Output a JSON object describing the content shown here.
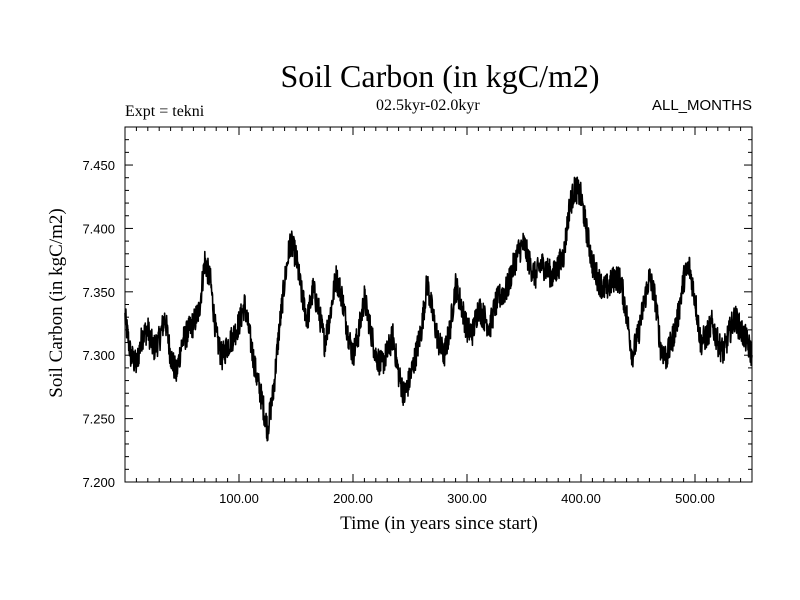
{
  "chart_data": {
    "type": "line",
    "title": "Soil Carbon (in kgC/m2)",
    "subtitle_left": "Expt = tekni",
    "subtitle_center": "02.5kyr-02.0kyr",
    "subtitle_right": "ALL_MONTHS",
    "xlabel": "Time (in years since start)",
    "ylabel": "Soil Carbon (in kgC/m2)",
    "xlim": [
      0,
      550
    ],
    "ylim": [
      7.2,
      7.48
    ],
    "x_ticks": [
      {
        "value": 100,
        "label": "100.00"
      },
      {
        "value": 200,
        "label": "200.00"
      },
      {
        "value": 300,
        "label": "300.00"
      },
      {
        "value": 400,
        "label": "400.00"
      },
      {
        "value": 500,
        "label": "500.00"
      }
    ],
    "y_ticks": [
      {
        "value": 7.2,
        "label": "7.200"
      },
      {
        "value": 7.25,
        "label": "7.250"
      },
      {
        "value": 7.3,
        "label": "7.300"
      },
      {
        "value": 7.35,
        "label": "7.350"
      },
      {
        "value": 7.4,
        "label": "7.400"
      },
      {
        "value": 7.45,
        "label": "7.450"
      }
    ],
    "series": [
      {
        "name": "Soil Carbon",
        "color": "#000000",
        "x": [
          0,
          5,
          10,
          15,
          20,
          25,
          30,
          35,
          40,
          45,
          50,
          55,
          60,
          65,
          70,
          75,
          80,
          85,
          90,
          95,
          100,
          105,
          110,
          115,
          120,
          125,
          130,
          135,
          140,
          145,
          150,
          155,
          160,
          165,
          170,
          175,
          180,
          185,
          190,
          195,
          200,
          205,
          210,
          215,
          220,
          225,
          230,
          235,
          240,
          245,
          250,
          255,
          260,
          265,
          270,
          275,
          280,
          285,
          290,
          295,
          300,
          305,
          310,
          315,
          320,
          325,
          330,
          335,
          340,
          345,
          350,
          355,
          360,
          365,
          370,
          375,
          380,
          385,
          390,
          395,
          400,
          405,
          410,
          415,
          420,
          425,
          430,
          435,
          440,
          445,
          450,
          455,
          460,
          465,
          470,
          475,
          480,
          485,
          490,
          495,
          500,
          505,
          510,
          515,
          520,
          525,
          530,
          535,
          540,
          545,
          550
        ],
        "y": [
          7.33,
          7.3,
          7.292,
          7.315,
          7.32,
          7.305,
          7.312,
          7.33,
          7.3,
          7.285,
          7.31,
          7.318,
          7.325,
          7.335,
          7.375,
          7.358,
          7.315,
          7.298,
          7.308,
          7.315,
          7.325,
          7.34,
          7.312,
          7.285,
          7.265,
          7.242,
          7.27,
          7.318,
          7.358,
          7.39,
          7.378,
          7.348,
          7.328,
          7.352,
          7.335,
          7.31,
          7.332,
          7.362,
          7.348,
          7.32,
          7.3,
          7.318,
          7.345,
          7.322,
          7.3,
          7.292,
          7.302,
          7.315,
          7.285,
          7.268,
          7.282,
          7.3,
          7.32,
          7.358,
          7.332,
          7.31,
          7.3,
          7.32,
          7.355,
          7.34,
          7.32,
          7.318,
          7.338,
          7.33,
          7.322,
          7.34,
          7.348,
          7.352,
          7.368,
          7.382,
          7.388,
          7.372,
          7.362,
          7.372,
          7.368,
          7.362,
          7.37,
          7.38,
          7.418,
          7.432,
          7.425,
          7.398,
          7.372,
          7.36,
          7.352,
          7.355,
          7.362,
          7.358,
          7.332,
          7.3,
          7.315,
          7.34,
          7.362,
          7.345,
          7.305,
          7.298,
          7.312,
          7.33,
          7.36,
          7.37,
          7.345,
          7.31,
          7.315,
          7.325,
          7.31,
          7.302,
          7.318,
          7.33,
          7.32,
          7.312,
          7.3
        ]
      }
    ]
  }
}
